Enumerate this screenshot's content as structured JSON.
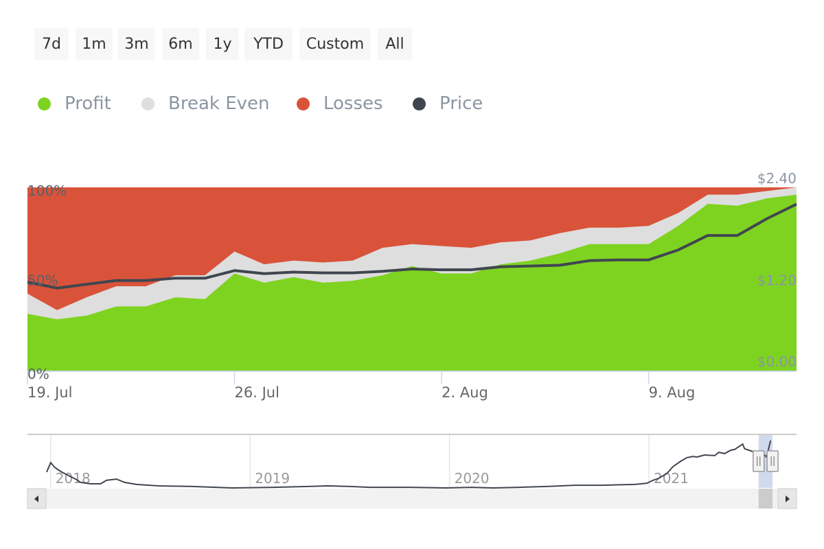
{
  "range_buttons": [
    "7d",
    "1m",
    "3m",
    "6m",
    "1y",
    "YTD",
    "Custom",
    "All"
  ],
  "legend": [
    {
      "label": "Profit",
      "color": "#7ed321"
    },
    {
      "label": "Break Even",
      "color": "#dedede"
    },
    {
      "label": "Losses",
      "color": "#d9533a"
    },
    {
      "label": "Price",
      "color": "#40464f"
    }
  ],
  "chart_data": {
    "type": "area",
    "stacking": "percent",
    "x": [
      "19. Jul",
      "20. Jul",
      "21. Jul",
      "22. Jul",
      "23. Jul",
      "24. Jul",
      "25. Jul",
      "26. Jul",
      "27. Jul",
      "28. Jul",
      "29. Jul",
      "30. Jul",
      "31. Jul",
      "1. Aug",
      "2. Aug",
      "3. Aug",
      "4. Aug",
      "5. Aug",
      "6. Aug",
      "7. Aug",
      "8. Aug",
      "9. Aug",
      "10. Aug",
      "11. Aug",
      "12. Aug",
      "13. Aug",
      "14. Aug"
    ],
    "x_tick_labels": [
      "19. Jul",
      "26. Jul",
      "2. Aug",
      "9. Aug"
    ],
    "x_tick_index": [
      0,
      7,
      14,
      21
    ],
    "series": [
      {
        "name": "Profit",
        "values": [
          31,
          28,
          30,
          35,
          35,
          40,
          39,
          53,
          48,
          51,
          48,
          49,
          52,
          57,
          53,
          53,
          58,
          60,
          64,
          69,
          69,
          69,
          79,
          91,
          90,
          94,
          96
        ]
      },
      {
        "name": "Break Even",
        "values": [
          11,
          5,
          10,
          11,
          11,
          12,
          13,
          12,
          10,
          9,
          11,
          11,
          15,
          12,
          15,
          14,
          12,
          11,
          11,
          9,
          9,
          10,
          7,
          5,
          6,
          4,
          4
        ]
      },
      {
        "name": "Losses",
        "values": [
          58,
          67,
          60,
          54,
          54,
          48,
          48,
          35,
          42,
          40,
          41,
          40,
          33,
          31,
          32,
          33,
          30,
          29,
          25,
          22,
          22,
          21,
          14,
          4,
          4,
          2,
          0
        ]
      }
    ],
    "price": {
      "name": "Price",
      "values": [
        1.16,
        1.08,
        1.13,
        1.18,
        1.18,
        1.21,
        1.21,
        1.31,
        1.27,
        1.29,
        1.28,
        1.28,
        1.3,
        1.33,
        1.32,
        1.32,
        1.36,
        1.37,
        1.38,
        1.44,
        1.45,
        1.45,
        1.58,
        1.77,
        1.77,
        1.99,
        2.18
      ]
    },
    "y_left": {
      "ticks": [
        "0%",
        "50%",
        "100%"
      ],
      "range": [
        0,
        100
      ]
    },
    "y_right": {
      "ticks": [
        "$0.00",
        "$1.20",
        "$2.40"
      ],
      "range": [
        0,
        2.4
      ]
    },
    "navigator": {
      "year_labels": [
        "2018",
        "2019",
        "2020",
        "2021"
      ],
      "year_values": [
        2018,
        2019,
        2020,
        2021
      ],
      "range": [
        2017.98,
        2021.63
      ],
      "selected": [
        2021.55,
        2021.62
      ],
      "series": [
        [
          2017.98,
          0.77
        ],
        [
          2018.0,
          1.23
        ],
        [
          2018.02,
          1.0
        ],
        [
          2018.05,
          0.8
        ],
        [
          2018.09,
          0.6
        ],
        [
          2018.13,
          0.4
        ],
        [
          2018.15,
          0.27
        ],
        [
          2018.2,
          0.2
        ],
        [
          2018.25,
          0.2
        ],
        [
          2018.28,
          0.37
        ],
        [
          2018.33,
          0.43
        ],
        [
          2018.37,
          0.27
        ],
        [
          2018.43,
          0.17
        ],
        [
          2018.54,
          0.1
        ],
        [
          2018.71,
          0.07
        ],
        [
          2018.91,
          0
        ],
        [
          2019.12,
          0.03
        ],
        [
          2019.29,
          0.07
        ],
        [
          2019.39,
          0.1
        ],
        [
          2019.5,
          0.07
        ],
        [
          2019.6,
          0.03
        ],
        [
          2019.8,
          0.03
        ],
        [
          2019.98,
          0
        ],
        [
          2020.11,
          0.03
        ],
        [
          2020.22,
          0
        ],
        [
          2020.35,
          0.03
        ],
        [
          2020.49,
          0.07
        ],
        [
          2020.63,
          0.13
        ],
        [
          2020.76,
          0.13
        ],
        [
          2020.93,
          0.17
        ],
        [
          2020.99,
          0.23
        ],
        [
          2021.02,
          0.37
        ],
        [
          2021.05,
          0.47
        ],
        [
          2021.09,
          0.7
        ],
        [
          2021.12,
          1.03
        ],
        [
          2021.16,
          1.3
        ],
        [
          2021.19,
          1.47
        ],
        [
          2021.22,
          1.53
        ],
        [
          2021.24,
          1.5
        ],
        [
          2021.28,
          1.6
        ],
        [
          2021.33,
          1.57
        ],
        [
          2021.35,
          1.73
        ],
        [
          2021.38,
          1.67
        ],
        [
          2021.41,
          1.83
        ],
        [
          2021.43,
          1.87
        ],
        [
          2021.47,
          2.13
        ],
        [
          2021.48,
          1.9
        ],
        [
          2021.52,
          1.77
        ],
        [
          2021.53,
          1.7
        ],
        [
          2021.57,
          1.7
        ],
        [
          2021.59,
          1.5
        ],
        [
          2021.61,
          2.3
        ]
      ]
    }
  }
}
